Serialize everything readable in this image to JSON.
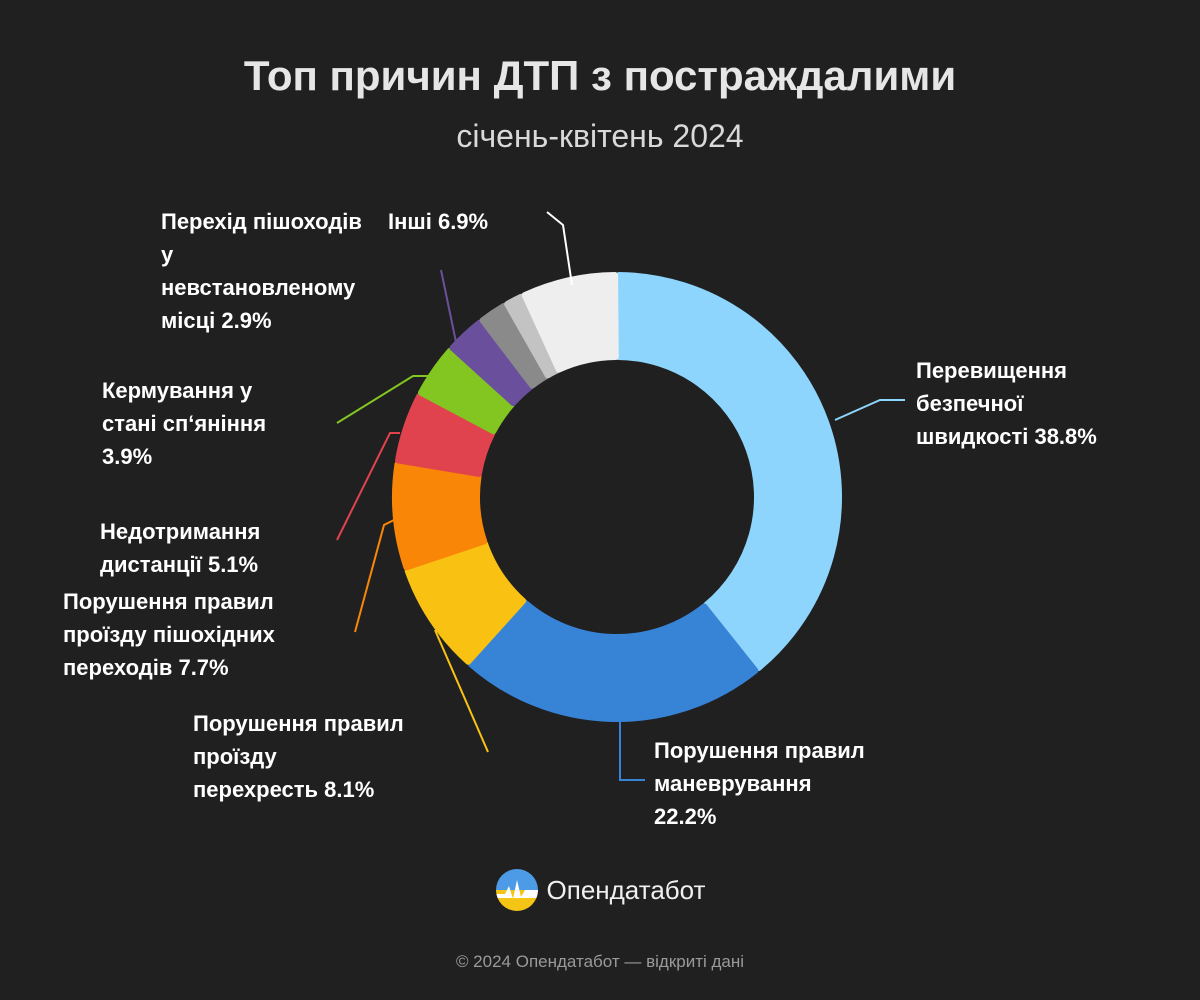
{
  "chart_data": {
    "type": "pie",
    "title": "Топ причин ДТП з постраждалими",
    "subtitle": "січень-квітень 2024",
    "donut": true,
    "slices": [
      {
        "label": "Перевищення безпечної швидкості",
        "value": 38.8,
        "value_text": "38.8%",
        "label_lines": [
          "Перевищення",
          "безпечної",
          "швидкості 38.8%"
        ],
        "color": "#8dd5fc",
        "side": "right"
      },
      {
        "label": "Порушення правил маневрування",
        "value": 22.2,
        "value_text": "22.2%",
        "label_lines": [
          "Порушення правил",
          "маневрування",
          "22.2%"
        ],
        "color": "#3783d6",
        "side": "right"
      },
      {
        "label": "Порушення правил проїзду перехресть",
        "value": 8.1,
        "value_text": "8.1%",
        "label_lines": [
          "Порушення правил",
          "проїзду",
          "перехресть 8.1%"
        ],
        "color": "#f9c213",
        "side": "left"
      },
      {
        "label": "Порушення правил проїзду пішохідних переходів",
        "value": 7.7,
        "value_text": "7.7%",
        "label_lines": [
          "Порушення правил",
          "проїзду пішохідних",
          "переходів 7.7%"
        ],
        "color": "#f98607",
        "side": "left"
      },
      {
        "label": "Недотримання дистанції",
        "value": 5.1,
        "value_text": "5.1%",
        "label_lines": [
          "Недотримання",
          "дистанції 5.1%"
        ],
        "color": "#e1434e",
        "side": "left"
      },
      {
        "label": "Кермування у стані сп'яніння",
        "value": 3.9,
        "value_text": "3.9%",
        "label_lines": [
          "Кермування у",
          "стані сп‘яніння",
          "3.9%"
        ],
        "color": "#83c521",
        "side": "left"
      },
      {
        "label": "Перехід пішоходів у невстановленому місці",
        "value": 2.9,
        "value_text": "2.9%",
        "label_lines": [
          "Перехід пішоходів",
          "у",
          "невстановленому",
          "місці 2.9%"
        ],
        "color": "#6a4f9d",
        "side": "left"
      },
      {
        "label": "",
        "value": 2.1,
        "value_text": "",
        "label_lines": [],
        "color": "#8a8a8a",
        "side": "none"
      },
      {
        "label": "",
        "value": 1.4,
        "value_text": "",
        "label_lines": [],
        "color": "#c3c3c3",
        "side": "none"
      },
      {
        "label": "Інші",
        "value": 6.9,
        "value_text": "6.9%",
        "label_lines": [
          "Інші 6.9%"
        ],
        "color": "#eeeeee",
        "side": "top"
      }
    ]
  },
  "brand": {
    "name": "Опендатабот",
    "icon": "opendatabot-logo"
  },
  "footer": {
    "text": "© 2024 Опендатабот — відкриті дані"
  }
}
